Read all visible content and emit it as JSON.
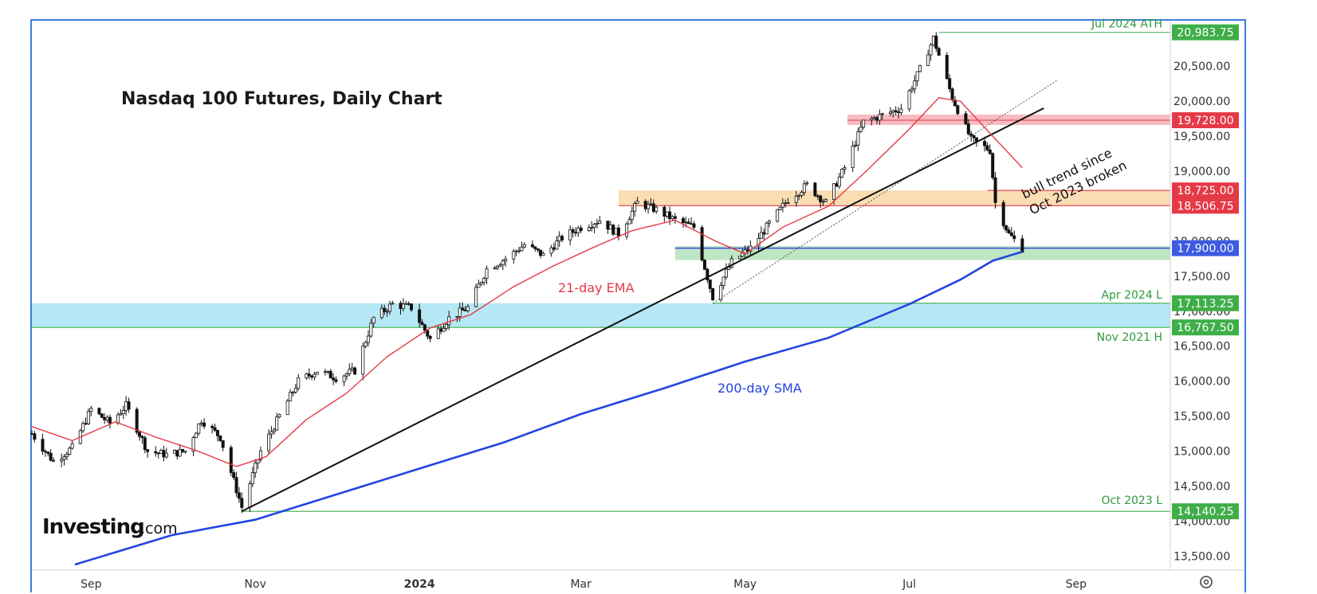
{
  "chart_data": {
    "type": "candlestick",
    "title": "Nasdaq 100 Futures, Daily Chart",
    "y_range": [
      13300,
      21150
    ],
    "y_ticks": [
      "13,500.00",
      "14,000.00",
      "14,500.00",
      "15,000.00",
      "15,500.00",
      "16,000.00",
      "16,500.00",
      "17,000.00",
      "17,500.00",
      "18,000.00",
      "18,500.00",
      "19,000.00",
      "19,500.00",
      "20,000.00",
      "20,500.00"
    ],
    "x_ticks": [
      "Sep",
      "Nov",
      "2024",
      "Mar",
      "May",
      "Jul",
      "Sep"
    ],
    "x_tick_dates": [
      "2023-09-01",
      "2023-11-01",
      "2024-01-01",
      "2024-03-01",
      "2024-05-01",
      "2024-07-01",
      "2024-09-01"
    ],
    "x_range": [
      "2023-08-10",
      "2024-10-06"
    ],
    "levels": [
      {
        "label": "Jul 2024 ATH",
        "value": 20983.75,
        "value_text": "20,983.75",
        "color": "#3fae49"
      },
      {
        "label": "",
        "value": 19728.0,
        "value_text": "19,728.00",
        "color": "#e53946"
      },
      {
        "label": "",
        "value": 18725.0,
        "value_text": "18,725.00",
        "color": "#e53946"
      },
      {
        "label": "",
        "value": 18506.75,
        "value_text": "18,506.75",
        "color": "#e53946"
      },
      {
        "label": "",
        "value": 17900.0,
        "value_text": "17,900.00",
        "color": "#3d5be0"
      },
      {
        "label": "Apr 2024 L",
        "value": 17113.25,
        "value_text": "17,113.25",
        "color": "#3fae49"
      },
      {
        "label": "Nov 2021 H",
        "value": 16767.5,
        "value_text": "16,767.50",
        "color": "#3fae49"
      },
      {
        "label": "Oct 2023 L",
        "value": 14140.25,
        "value_text": "14,140.25",
        "color": "#3fae49"
      }
    ],
    "zones": [
      {
        "name": "red-resistance",
        "from": 19660,
        "to": 19810,
        "color": "#f4a6ad"
      },
      {
        "name": "orange-zone",
        "from": 18506.75,
        "to": 18725,
        "color": "#f8d29a"
      },
      {
        "name": "green-zone",
        "from": 17730,
        "to": 17930,
        "color": "#a9ddb0"
      },
      {
        "name": "blue-zone",
        "from": 16767.5,
        "to": 17113.25,
        "color": "#9edff0"
      }
    ],
    "trendline": {
      "from": {
        "date": "2023-10-27",
        "value": 14140
      },
      "to": {
        "date": "2024-08-20",
        "value": 19900
      },
      "color": "#111111"
    },
    "dotted_line": {
      "from": {
        "date": "2024-04-19",
        "value": 17113
      },
      "to": {
        "date": "2024-08-25",
        "value": 20300
      }
    },
    "sma200": {
      "name": "200-day SMA",
      "color": "#2345e0",
      "points": [
        [
          "2023-08-26",
          13380
        ],
        [
          "2023-10-01",
          13800
        ],
        [
          "2023-11-01",
          14020
        ],
        [
          "2023-12-01",
          14380
        ],
        [
          "2024-01-01",
          14750
        ],
        [
          "2024-02-01",
          15120
        ],
        [
          "2024-03-01",
          15530
        ],
        [
          "2024-04-01",
          15900
        ],
        [
          "2024-05-01",
          16280
        ],
        [
          "2024-06-01",
          16620
        ],
        [
          "2024-07-01",
          17100
        ],
        [
          "2024-07-20",
          17450
        ],
        [
          "2024-08-01",
          17720
        ],
        [
          "2024-08-12",
          17850
        ]
      ]
    },
    "ema21": {
      "name": "21-day EMA",
      "color": "#e53946",
      "points": [
        [
          "2023-08-10",
          15350
        ],
        [
          "2023-08-25",
          15150
        ],
        [
          "2023-09-10",
          15420
        ],
        [
          "2023-09-25",
          15200
        ],
        [
          "2023-10-10",
          15010
        ],
        [
          "2023-10-25",
          14780
        ],
        [
          "2023-11-05",
          14920
        ],
        [
          "2023-11-20",
          15450
        ],
        [
          "2023-12-05",
          15830
        ],
        [
          "2023-12-20",
          16350
        ],
        [
          "2024-01-05",
          16760
        ],
        [
          "2024-01-20",
          16950
        ],
        [
          "2024-02-05",
          17350
        ],
        [
          "2024-02-20",
          17650
        ],
        [
          "2024-03-05",
          17900
        ],
        [
          "2024-03-20",
          18150
        ],
        [
          "2024-04-05",
          18300
        ],
        [
          "2024-04-20",
          18000
        ],
        [
          "2024-05-01",
          17820
        ],
        [
          "2024-05-15",
          18200
        ],
        [
          "2024-06-01",
          18500
        ],
        [
          "2024-06-15",
          19000
        ],
        [
          "2024-07-01",
          19600
        ],
        [
          "2024-07-12",
          20050
        ],
        [
          "2024-07-20",
          20000
        ],
        [
          "2024-08-01",
          19500
        ],
        [
          "2024-08-12",
          19050
        ]
      ]
    },
    "closes": [
      [
        "2023-08-10",
        15250
      ],
      [
        "2023-08-18",
        14850
      ],
      [
        "2023-08-25",
        15050
      ],
      [
        "2023-09-01",
        15600
      ],
      [
        "2023-09-08",
        15400
      ],
      [
        "2023-09-14",
        15650
      ],
      [
        "2023-09-22",
        15000
      ],
      [
        "2023-09-29",
        14950
      ],
      [
        "2023-10-06",
        15000
      ],
      [
        "2023-10-12",
        15450
      ],
      [
        "2023-10-19",
        15200
      ],
      [
        "2023-10-27",
        14200
      ],
      [
        "2023-11-03",
        15000
      ],
      [
        "2023-11-10",
        15500
      ],
      [
        "2023-11-17",
        16000
      ],
      [
        "2023-11-24",
        16150
      ],
      [
        "2023-12-01",
        16050
      ],
      [
        "2023-12-08",
        16150
      ],
      [
        "2023-12-15",
        16900
      ],
      [
        "2023-12-22",
        17100
      ],
      [
        "2023-12-29",
        17050
      ],
      [
        "2024-01-05",
        16600
      ],
      [
        "2024-01-12",
        16900
      ],
      [
        "2024-01-19",
        17050
      ],
      [
        "2024-01-26",
        17600
      ],
      [
        "2024-02-02",
        17750
      ],
      [
        "2024-02-09",
        17950
      ],
      [
        "2024-02-16",
        17800
      ],
      [
        "2024-02-23",
        18050
      ],
      [
        "2024-03-01",
        18200
      ],
      [
        "2024-03-08",
        18300
      ],
      [
        "2024-03-15",
        18100
      ],
      [
        "2024-03-22",
        18550
      ],
      [
        "2024-03-29",
        18450
      ],
      [
        "2024-04-05",
        18300
      ],
      [
        "2024-04-12",
        18200
      ],
      [
        "2024-04-19",
        17200
      ],
      [
        "2024-04-26",
        17700
      ],
      [
        "2024-05-03",
        17900
      ],
      [
        "2024-05-10",
        18250
      ],
      [
        "2024-05-17",
        18600
      ],
      [
        "2024-05-24",
        18800
      ],
      [
        "2024-05-31",
        18550
      ],
      [
        "2024-06-07",
        19050
      ],
      [
        "2024-06-14",
        19700
      ],
      [
        "2024-06-21",
        19800
      ],
      [
        "2024-06-28",
        19900
      ],
      [
        "2024-07-05",
        20450
      ],
      [
        "2024-07-10",
        20900
      ],
      [
        "2024-07-17",
        20050
      ],
      [
        "2024-07-24",
        19450
      ],
      [
        "2024-07-31",
        19300
      ],
      [
        "2024-08-02",
        18550
      ],
      [
        "2024-08-07",
        18100
      ],
      [
        "2024-08-12",
        17900
      ]
    ],
    "annotations": [
      "21-day EMA",
      "200-day SMA",
      "bull trend since",
      "Oct 2023 broken"
    ],
    "grid": false
  },
  "labels": {
    "ema": "21-day EMA",
    "sma": "200-day SMA",
    "trend_line1": "bull trend since",
    "trend_line2": "Oct 2023 broken"
  },
  "brand": {
    "main": "Investing",
    "sub": ".com"
  },
  "settings_icon": "gear-icon"
}
